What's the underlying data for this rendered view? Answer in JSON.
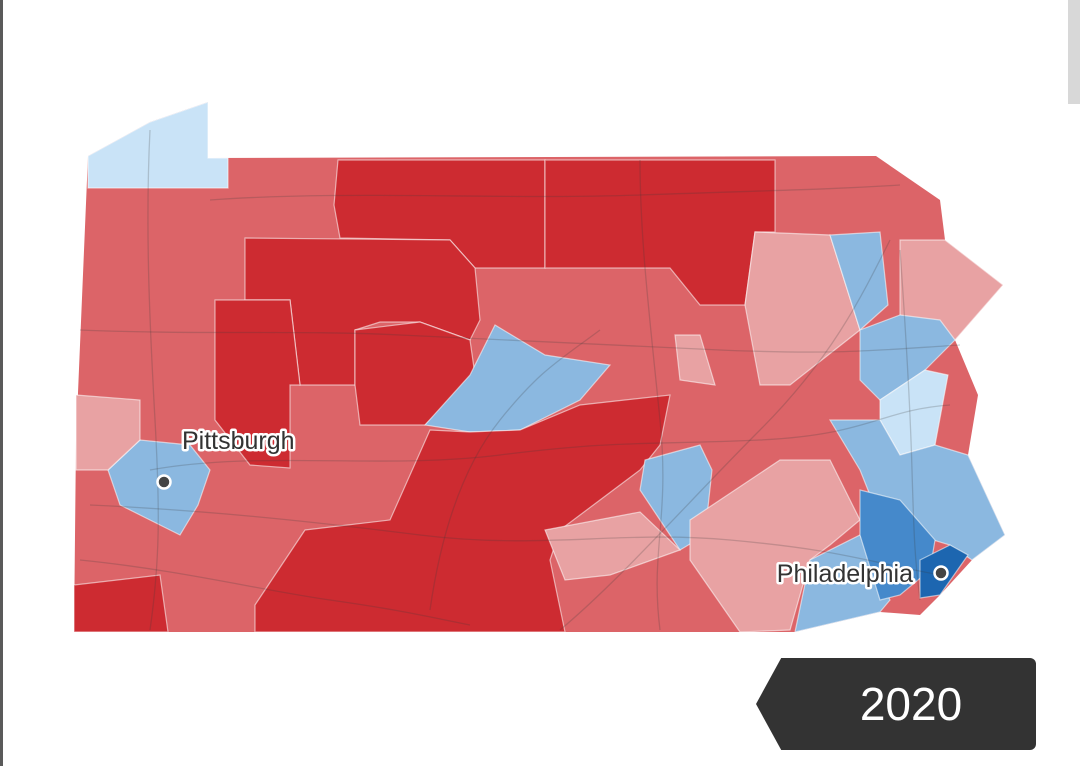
{
  "colors": {
    "strong_rep": "#cd2b31",
    "lean_rep": "#dc6468",
    "slight_rep": "#e8a2a3",
    "slight_dem": "#c9e3f7",
    "lean_dem": "#8bb8e0",
    "strong_dem": "#4589cb",
    "solid_dem": "#1d66b0"
  },
  "cities": [
    {
      "name": "Pittsburgh"
    },
    {
      "name": "Philadelphia"
    }
  ],
  "year_badge": {
    "label": "2020"
  }
}
